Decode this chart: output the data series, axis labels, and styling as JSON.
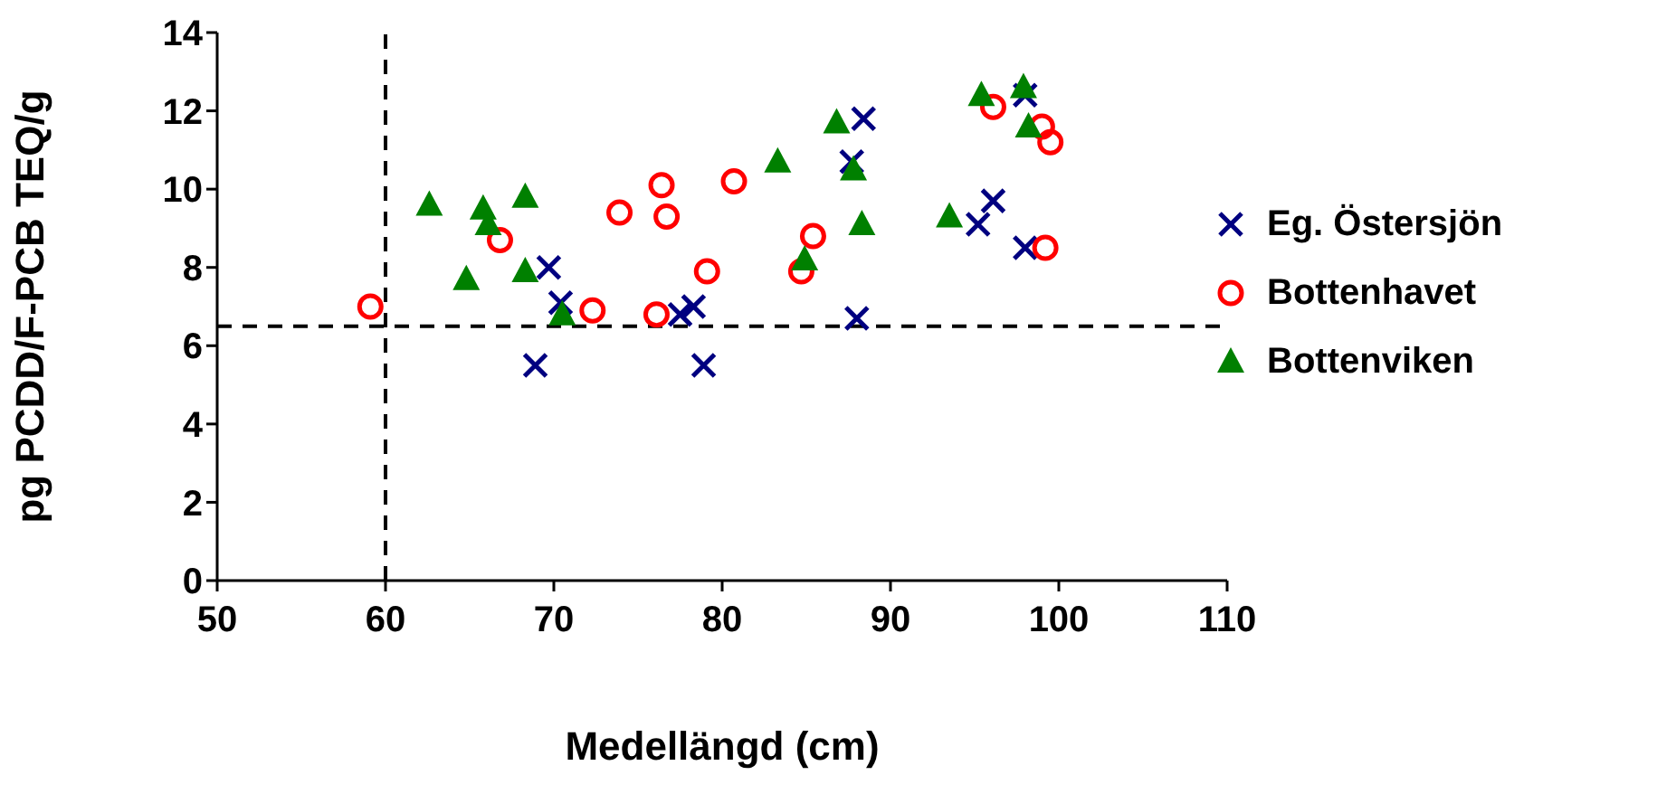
{
  "chart_data": {
    "type": "scatter",
    "xlabel": "Medellängd (cm)",
    "ylabel": "pg PCDD/F-PCB TEQ/g",
    "xlim": [
      50,
      110
    ],
    "xticks": [
      50,
      60,
      70,
      80,
      90,
      100,
      110
    ],
    "ylim": [
      0,
      14
    ],
    "yticks": [
      0,
      2,
      4,
      6,
      8,
      10,
      12,
      14
    ],
    "grid": false,
    "legend": "right",
    "ref_lines": [
      {
        "axis": "x",
        "value": 60,
        "color": "#000000",
        "line_style": "dashed"
      },
      {
        "axis": "y",
        "value": 6.5,
        "color": "#000000",
        "line_style": "dashed"
      }
    ],
    "series": [
      {
        "name": "Eg. Östersjön",
        "color": "#000080",
        "marker": "cross",
        "x": [
          69.7,
          70.4,
          68.9,
          78.3,
          77.5,
          78.9,
          88.0,
          88.4,
          87.7,
          98.0,
          96.1,
          95.2,
          98.0
        ],
        "values": [
          8.0,
          7.1,
          5.5,
          7.0,
          6.8,
          5.5,
          6.7,
          11.8,
          10.7,
          12.4,
          9.7,
          9.1,
          8.5
        ]
      },
      {
        "name": "Bottenhavet",
        "color": "#ff0000",
        "marker": "circle",
        "x": [
          59.1,
          66.8,
          72.3,
          76.1,
          73.9,
          76.4,
          76.7,
          80.7,
          79.1,
          85.4,
          84.7,
          96.1,
          99.0,
          99.5,
          99.2
        ],
        "values": [
          7.0,
          8.7,
          6.9,
          6.8,
          9.4,
          10.1,
          9.3,
          10.2,
          7.9,
          8.8,
          7.9,
          12.1,
          11.6,
          11.2,
          8.5
        ]
      },
      {
        "name": "Bottenviken",
        "color": "#008000",
        "marker": "triangle",
        "x": [
          62.6,
          65.8,
          66.1,
          68.3,
          64.8,
          68.3,
          70.5,
          86.8,
          83.3,
          87.8,
          88.3,
          84.9,
          95.4,
          97.9,
          98.2,
          93.5
        ],
        "values": [
          9.6,
          9.5,
          9.1,
          9.8,
          7.7,
          7.9,
          6.8,
          11.7,
          10.7,
          10.5,
          9.1,
          8.2,
          12.4,
          12.6,
          11.6,
          9.3
        ]
      }
    ]
  }
}
